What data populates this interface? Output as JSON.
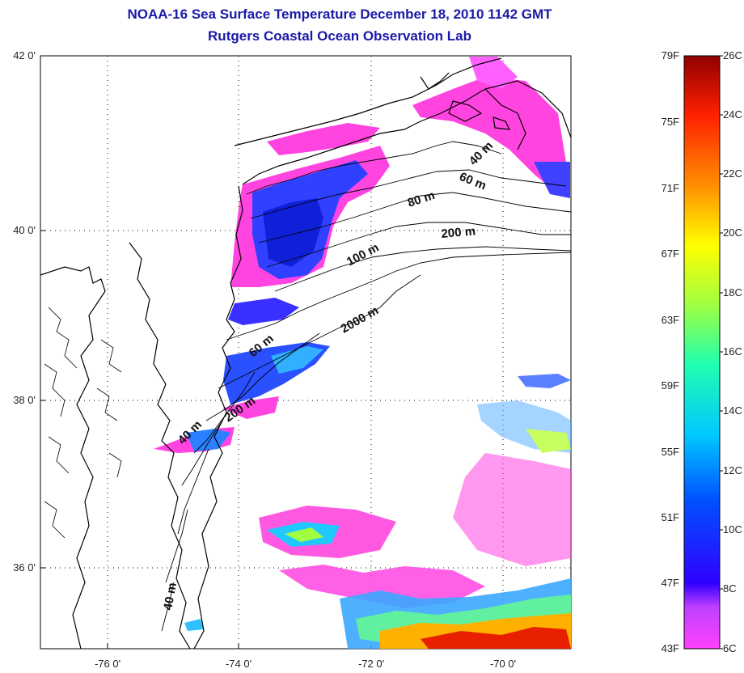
{
  "title": "NOAA-16 Sea Surface Temperature December 18, 2010 1142 GMT",
  "subtitle": "Rutgers Coastal Ocean Observation Lab",
  "axes": {
    "lon_ticks": [
      "-76 0'",
      "-74 0'",
      "-72 0'",
      "-70 0'"
    ],
    "lat_ticks": [
      "42 0'",
      "40 0'",
      "38 0'",
      "36 0'"
    ]
  },
  "isobath_labels": [
    "40 m",
    "60 m",
    "80 m",
    "200 m",
    "100 m",
    "2000 m",
    "60 m",
    "200 m",
    "40 m",
    "40 m"
  ],
  "colorbar": {
    "fahrenheit": [
      "79F",
      "75F",
      "71F",
      "67F",
      "63F",
      "59F",
      "55F",
      "51F",
      "47F",
      "43F"
    ],
    "celsius": [
      "26C",
      "24C",
      "22C",
      "20C",
      "18C",
      "16C",
      "14C",
      "12C",
      "10C",
      "8C",
      "6C"
    ]
  },
  "colors": {
    "title": "#1a1aa8",
    "cold": "#ff44e0",
    "cool": "#2a3aff",
    "mid": "#20d0ff",
    "warm": "#ffcc00",
    "hot": "#e00000"
  }
}
